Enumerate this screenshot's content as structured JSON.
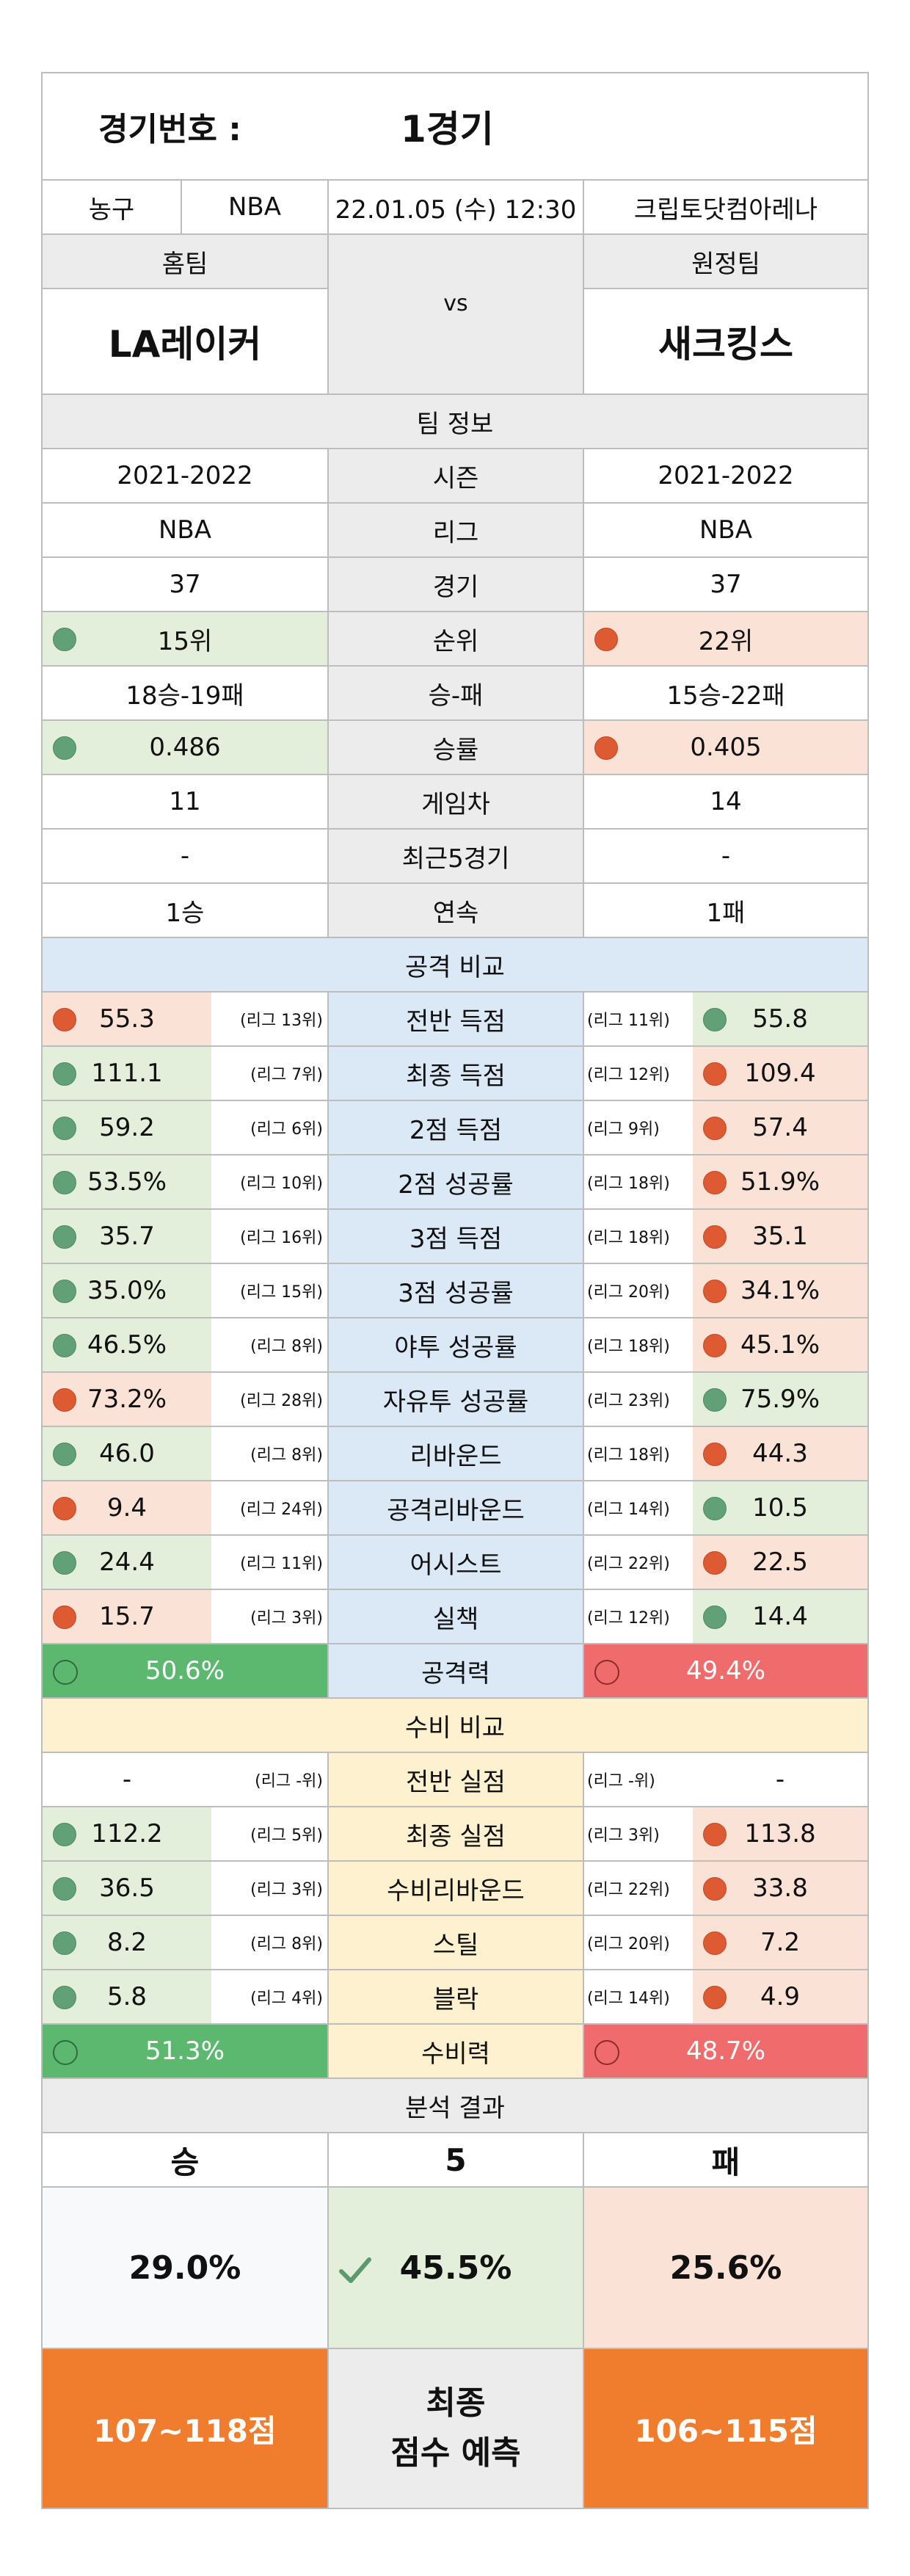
{
  "header": {
    "match_label": "경기번호 :",
    "match_value": "1경기",
    "sport": "농구",
    "league": "NBA",
    "datetime": "22.01.05 (수) 12:30",
    "venue": "크립토닷컴아레나",
    "home_label": "홈팀",
    "away_label": "원정팀",
    "home_team": "LA레이커",
    "away_team": "새크킹스",
    "vs": "vs"
  },
  "team_info": {
    "title": "팀 정보",
    "rows": [
      {
        "label": "시즌",
        "home": "2021-2022",
        "away": "2021-2022",
        "dot": false
      },
      {
        "label": "리그",
        "home": "NBA",
        "away": "NBA",
        "dot": false
      },
      {
        "label": "경기",
        "home": "37",
        "away": "37",
        "dot": false
      },
      {
        "label": "순위",
        "home": "15위",
        "away": "22위",
        "dot": true
      },
      {
        "label": "승-패",
        "home": "18승-19패",
        "away": "15승-22패",
        "dot": false
      },
      {
        "label": "승률",
        "home": "0.486",
        "away": "0.405",
        "dot": true
      },
      {
        "label": "게임차",
        "home": "11",
        "away": "14",
        "dot": false
      },
      {
        "label": "최근5경기",
        "home": "-",
        "away": "-",
        "dot": false
      },
      {
        "label": "연속",
        "home": "1승",
        "away": "1패",
        "dot": false
      }
    ]
  },
  "attack": {
    "title": "공격 비교",
    "rows": [
      {
        "label": "전반 득점",
        "home": "55.3",
        "home_rank": "(리그 13위)",
        "home_color": "red",
        "away": "55.8",
        "away_rank": "(리그 11위)",
        "away_color": "green"
      },
      {
        "label": "최종 득점",
        "home": "111.1",
        "home_rank": "(리그 7위)",
        "home_color": "green",
        "away": "109.4",
        "away_rank": "(리그 12위)",
        "away_color": "red"
      },
      {
        "label": "2점 득점",
        "home": "59.2",
        "home_rank": "(리그 6위)",
        "home_color": "green",
        "away": "57.4",
        "away_rank": "(리그 9위)",
        "away_color": "red"
      },
      {
        "label": "2점 성공률",
        "home": "53.5%",
        "home_rank": "(리그 10위)",
        "home_color": "green",
        "away": "51.9%",
        "away_rank": "(리그 18위)",
        "away_color": "red"
      },
      {
        "label": "3점 득점",
        "home": "35.7",
        "home_rank": "(리그 16위)",
        "home_color": "green",
        "away": "35.1",
        "away_rank": "(리그 18위)",
        "away_color": "red"
      },
      {
        "label": "3점 성공률",
        "home": "35.0%",
        "home_rank": "(리그 15위)",
        "home_color": "green",
        "away": "34.1%",
        "away_rank": "(리그 20위)",
        "away_color": "red"
      },
      {
        "label": "야투 성공률",
        "home": "46.5%",
        "home_rank": "(리그 8위)",
        "home_color": "green",
        "away": "45.1%",
        "away_rank": "(리그 18위)",
        "away_color": "red"
      },
      {
        "label": "자유투 성공률",
        "home": "73.2%",
        "home_rank": "(리그 28위)",
        "home_color": "red",
        "away": "75.9%",
        "away_rank": "(리그 23위)",
        "away_color": "green"
      },
      {
        "label": "리바운드",
        "home": "46.0",
        "home_rank": "(리그 8위)",
        "home_color": "green",
        "away": "44.3",
        "away_rank": "(리그 18위)",
        "away_color": "red"
      },
      {
        "label": "공격리바운드",
        "home": "9.4",
        "home_rank": "(리그 24위)",
        "home_color": "red",
        "away": "10.5",
        "away_rank": "(리그 14위)",
        "away_color": "green"
      },
      {
        "label": "어시스트",
        "home": "24.4",
        "home_rank": "(리그 11위)",
        "home_color": "green",
        "away": "22.5",
        "away_rank": "(리그 22위)",
        "away_color": "red"
      },
      {
        "label": "실책",
        "home": "15.7",
        "home_rank": "(리그 3위)",
        "home_color": "red",
        "away": "14.4",
        "away_rank": "(리그 12위)",
        "away_color": "green"
      }
    ],
    "power_label": "공격력",
    "home_power": "50.6%",
    "away_power": "49.4%"
  },
  "defense": {
    "title": "수비 비교",
    "rows": [
      {
        "label": "전반 실점",
        "home": "-",
        "home_rank": "(리그 -위)",
        "home_color": "none",
        "away": "-",
        "away_rank": "(리그 -위)",
        "away_color": "none"
      },
      {
        "label": "최종 실점",
        "home": "112.2",
        "home_rank": "(리그 5위)",
        "home_color": "green",
        "away": "113.8",
        "away_rank": "(리그 3위)",
        "away_color": "red"
      },
      {
        "label": "수비리바운드",
        "home": "36.5",
        "home_rank": "(리그 3위)",
        "home_color": "green",
        "away": "33.8",
        "away_rank": "(리그 22위)",
        "away_color": "red"
      },
      {
        "label": "스틸",
        "home": "8.2",
        "home_rank": "(리그 8위)",
        "home_color": "green",
        "away": "7.2",
        "away_rank": "(리그 20위)",
        "away_color": "red"
      },
      {
        "label": "블락",
        "home": "5.8",
        "home_rank": "(리그 4위)",
        "home_color": "green",
        "away": "4.9",
        "away_rank": "(리그 14위)",
        "away_color": "red"
      }
    ],
    "power_label": "수비력",
    "home_power": "51.3%",
    "away_power": "48.7%"
  },
  "result": {
    "title": "분석 결과",
    "win_label": "승",
    "draw_label": "5",
    "lose_label": "패",
    "win_pct": "29.0%",
    "draw_pct": "45.5%",
    "lose_pct": "25.6%",
    "home_score": "107~118점",
    "away_score": "106~115점",
    "final_line1": "최종",
    "final_line2": "점수 예측"
  },
  "colors": {
    "green_fill": "#e3efda",
    "red_fill": "#fbe2d6",
    "green_dot": "#62a077",
    "red_dot": "#dd5a33",
    "orange": "#ef7d2d",
    "attack_bg": "#dbe8f5",
    "defense_bg": "#fdf1cf"
  }
}
